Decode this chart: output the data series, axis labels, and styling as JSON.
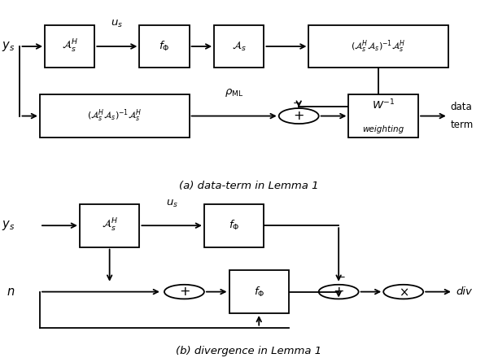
{
  "fig_width": 6.12,
  "fig_height": 4.4,
  "dpi": 100,
  "bg_color": "#ffffff",
  "caption_a": "(a) data-term in Lemma 1",
  "caption_b": "(b) divergence in Lemma 1",
  "box_color": "#ffffff",
  "box_edge_color": "#000000",
  "line_color": "#000000"
}
